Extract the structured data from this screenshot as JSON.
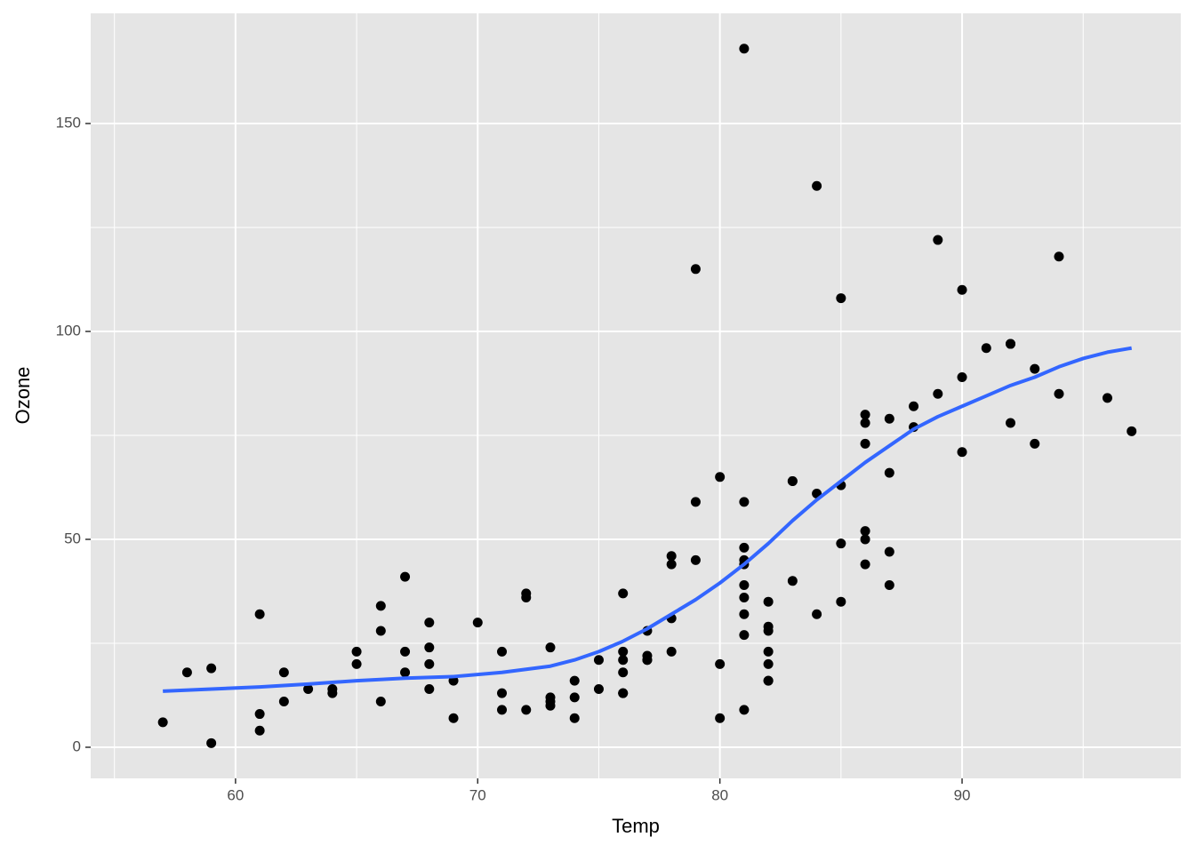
{
  "chart_data": {
    "type": "scatter",
    "xlabel": "Temp",
    "ylabel": "Ozone",
    "x": [
      67,
      72,
      74,
      62,
      66,
      65,
      59,
      61,
      74,
      69,
      66,
      68,
      58,
      64,
      66,
      57,
      68,
      62,
      59,
      73,
      61,
      61,
      67,
      81,
      79,
      76,
      82,
      90,
      87,
      82,
      77,
      72,
      65,
      73,
      76,
      84,
      85,
      81,
      83,
      83,
      88,
      92,
      92,
      89,
      73,
      81,
      80,
      81,
      82,
      84,
      87,
      85,
      74,
      86,
      85,
      82,
      86,
      88,
      86,
      83,
      81,
      81,
      81,
      82,
      86,
      85,
      87,
      89,
      90,
      90,
      86,
      82,
      80,
      77,
      79,
      76,
      78,
      78,
      77,
      72,
      79,
      81,
      86,
      97,
      94,
      96,
      94,
      91,
      92,
      93,
      93,
      87,
      84,
      80,
      78,
      75,
      73,
      81,
      76,
      77,
      71,
      71,
      78,
      67,
      76,
      68,
      82,
      64,
      71,
      81,
      69,
      63,
      70,
      75,
      76,
      68
    ],
    "values": [
      41,
      36,
      12,
      18,
      28,
      23,
      19,
      8,
      7,
      16,
      11,
      14,
      18,
      14,
      34,
      6,
      30,
      11,
      1,
      11,
      4,
      32,
      23,
      45,
      115,
      37,
      29,
      71,
      39,
      23,
      21,
      37,
      20,
      12,
      13,
      135,
      49,
      32,
      64,
      40,
      77,
      97,
      97,
      85,
      10,
      27,
      7,
      48,
      35,
      61,
      79,
      63,
      16,
      80,
      108,
      20,
      52,
      82,
      50,
      64,
      59,
      39,
      9,
      16,
      78,
      35,
      66,
      122,
      89,
      110,
      44,
      28,
      65,
      22,
      59,
      23,
      31,
      44,
      21,
      9,
      45,
      168,
      73,
      76,
      118,
      84,
      85,
      96,
      78,
      73,
      91,
      47,
      32,
      20,
      23,
      21,
      24,
      44,
      21,
      28,
      9,
      13,
      46,
      18,
      13,
      24,
      16,
      13,
      23,
      36,
      7,
      14,
      30,
      14,
      18,
      20
    ],
    "color": "#000000",
    "smooth": {
      "x": [
        57,
        59,
        61,
        63,
        65,
        67,
        69,
        71,
        73,
        74,
        75,
        76,
        77,
        78,
        79,
        80,
        81,
        82,
        83,
        84,
        85,
        86,
        87,
        88,
        89,
        90,
        91,
        92,
        93,
        94,
        95,
        96,
        97
      ],
      "values": [
        13.5,
        14,
        14.5,
        15.2,
        16,
        16.6,
        17,
        18,
        19.5,
        21,
        23,
        25.5,
        28.5,
        32,
        35.5,
        39.5,
        44,
        49,
        54.5,
        59.5,
        64,
        68.5,
        72.5,
        76.5,
        79.5,
        82,
        84.5,
        87,
        89,
        91.5,
        93.5,
        95,
        96
      ],
      "color": "#3366ff"
    },
    "xlim": [
      54.02,
      99.03
    ],
    "ylim": [
      -7.48,
      176.5
    ],
    "xticks": [
      60,
      70,
      80,
      90
    ],
    "yticks": [
      0,
      50,
      100,
      150
    ],
    "xminor": [
      55,
      65,
      75,
      85,
      95
    ],
    "yminor": [
      25,
      75,
      125
    ],
    "grid": true,
    "panel_color": "#e5e5e5"
  }
}
